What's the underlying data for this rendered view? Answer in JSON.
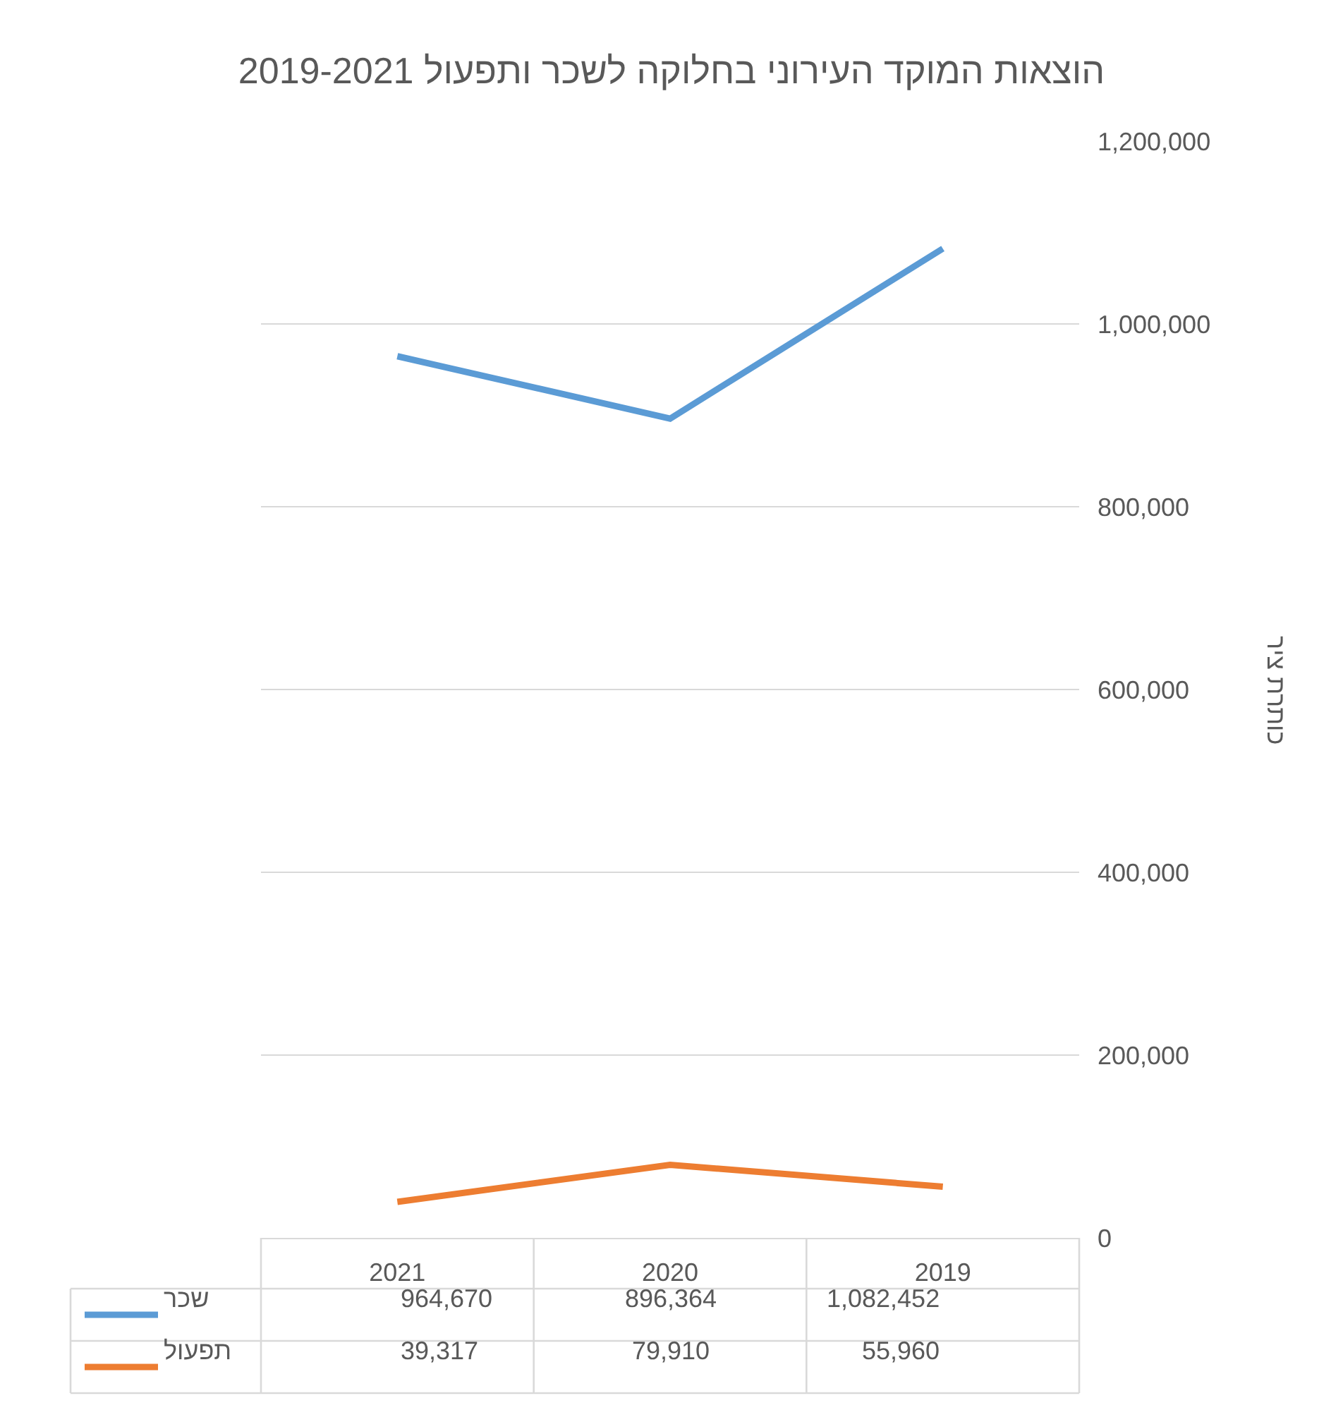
{
  "chart_data": {
    "type": "line",
    "title": "הוצאות המוקד העירוני בחלוקה לשכר ותפעול 2019-2021",
    "ylabel": "כותרת ציר",
    "categories": [
      "2021",
      "2020",
      "2019"
    ],
    "series": [
      {
        "name": "שכר",
        "color": "#5b9bd5",
        "values": [
          964670,
          896364,
          1082452
        ],
        "value_labels": [
          "964,670",
          "896,364",
          "1,082,452"
        ]
      },
      {
        "name": "תפעול",
        "color": "#ed7d31",
        "values": [
          39317,
          79910,
          55960
        ],
        "value_labels": [
          "39,317",
          "79,910",
          "55,960"
        ]
      }
    ],
    "ylim": [
      0,
      1200000
    ],
    "yticks": [
      0,
      {
        "value": 200000,
        "label": "200,000"
      },
      {
        "value": 400000,
        "label": "400,000"
      },
      {
        "value": 600000,
        "label": "600,000"
      },
      {
        "value": 800000,
        "label": "800,000"
      },
      {
        "value": 1000000,
        "label": "1,000,000"
      },
      {
        "value": 1200000,
        "label": "1,200,000"
      }
    ],
    "grid": "y",
    "legend": "bottom",
    "marker": "none",
    "line_style": "solid"
  }
}
